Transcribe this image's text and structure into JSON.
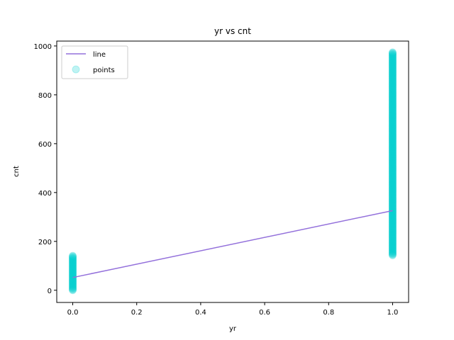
{
  "chart_data": {
    "type": "scatter",
    "title": "yr vs cnt",
    "xlabel": "yr",
    "ylabel": "cnt",
    "xlim": [
      -0.05,
      1.05
    ],
    "ylim": [
      -50,
      1020
    ],
    "xticks": [
      0.0,
      0.2,
      0.4,
      0.6,
      0.8,
      1.0
    ],
    "xtick_labels": [
      "0.0",
      "0.2",
      "0.4",
      "0.6",
      "0.8",
      "1.0"
    ],
    "yticks": [
      0,
      200,
      400,
      600,
      800,
      1000
    ],
    "ytick_labels": [
      "0",
      "200",
      "400",
      "600",
      "800",
      "1000"
    ],
    "grid": false,
    "legend_position": "top-left",
    "series": [
      {
        "name": "line",
        "type": "line",
        "color": "#9370DB",
        "x": [
          0,
          1
        ],
        "y": [
          52,
          326
        ]
      },
      {
        "name": "points",
        "type": "scatter",
        "color": "#00CED1",
        "opacity": 0.25,
        "groups": [
          {
            "x": 0,
            "y_min": 0,
            "y_max": 143
          },
          {
            "x": 1,
            "y_min": 143,
            "y_max": 976
          }
        ]
      }
    ]
  }
}
